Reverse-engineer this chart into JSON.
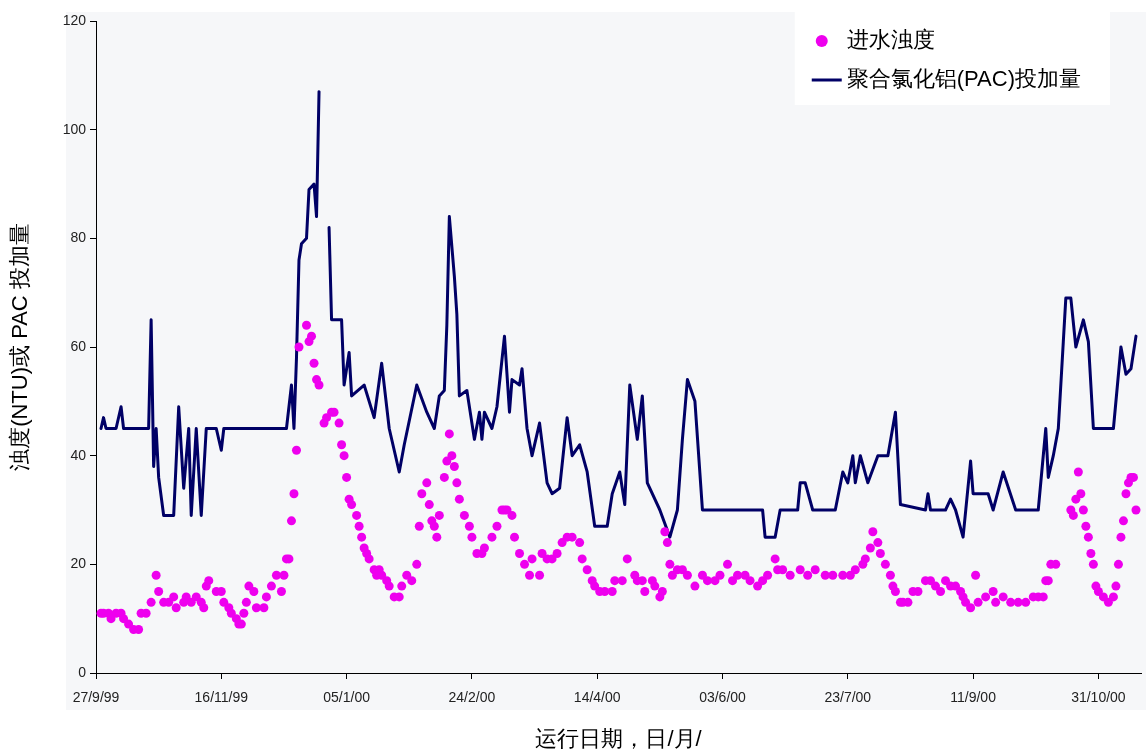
{
  "chart_data": {
    "type": "line",
    "xlabel": "运行日期，日/月/",
    "ylabel": "浊度(NTU)或 PAC 投加量",
    "xlim": [
      "1999-09-27",
      "2000-11-17"
    ],
    "xticks": [
      {
        "value": "1999-09-27",
        "label": "27/9/99"
      },
      {
        "value": "1999-11-16",
        "label": "16/11/99"
      },
      {
        "value": "2000-01-05",
        "label": "05/1/00"
      },
      {
        "value": "2000-02-24",
        "label": "24/2/00"
      },
      {
        "value": "2000-04-14",
        "label": "14/4/00"
      },
      {
        "value": "2000-06-03",
        "label": "03/6/00"
      },
      {
        "value": "2000-07-23",
        "label": "23/7/00"
      },
      {
        "value": "2000-09-11",
        "label": "11/9/00"
      },
      {
        "value": "2000-10-31",
        "label": "31/10/00"
      }
    ],
    "ylim": [
      0,
      120
    ],
    "yticks": [
      0,
      20,
      40,
      60,
      80,
      100,
      120
    ],
    "legend": "top right",
    "series": [
      {
        "name": "进水浊度",
        "type": "scatter",
        "marker": "circle",
        "color": "#ee00ee",
        "x": [
          "1999-09-29",
          "1999-09-30",
          "1999-10-02",
          "1999-10-03",
          "1999-10-05",
          "1999-10-07",
          "1999-10-08",
          "1999-10-10",
          "1999-10-12",
          "1999-10-14",
          "1999-10-15",
          "1999-10-17",
          "1999-10-19",
          "1999-10-21",
          "1999-10-22",
          "1999-10-24",
          "1999-10-26",
          "1999-10-28",
          "1999-10-29",
          "1999-11-01",
          "1999-11-02",
          "1999-11-04",
          "1999-11-06",
          "1999-11-08",
          "1999-11-09",
          "1999-11-10",
          "1999-11-11",
          "1999-11-14",
          "1999-11-16",
          "1999-11-17",
          "1999-11-19",
          "1999-11-20",
          "1999-11-22",
          "1999-11-23",
          "1999-11-24",
          "1999-11-25",
          "1999-11-26",
          "1999-11-27",
          "1999-11-29",
          "1999-11-30",
          "1999-12-03",
          "1999-12-04",
          "1999-12-06",
          "1999-12-08",
          "1999-12-10",
          "1999-12-11",
          "1999-12-12",
          "1999-12-13",
          "1999-12-14",
          "1999-12-15",
          "1999-12-16",
          "1999-12-17",
          "1999-12-20",
          "1999-12-21",
          "1999-12-22",
          "1999-12-23",
          "1999-12-24",
          "1999-12-25",
          "1999-12-27",
          "1999-12-28",
          "1999-12-30",
          "1999-12-31",
          "2000-01-02",
          "2000-01-03",
          "2000-01-04",
          "2000-01-05",
          "2000-01-06",
          "2000-01-07",
          "2000-01-09",
          "2000-01-10",
          "2000-01-11",
          "2000-01-12",
          "2000-01-13",
          "2000-01-14",
          "2000-01-16",
          "2000-01-17",
          "2000-01-18",
          "2000-01-19",
          "2000-01-21",
          "2000-01-22",
          "2000-01-24",
          "2000-01-26",
          "2000-01-27",
          "2000-01-29",
          "2000-01-31",
          "2000-02-02",
          "2000-02-03",
          "2000-02-04",
          "2000-02-06",
          "2000-02-07",
          "2000-02-08",
          "2000-02-09",
          "2000-02-10",
          "2000-02-11",
          "2000-02-13",
          "2000-02-14",
          "2000-02-15",
          "2000-02-16",
          "2000-02-17",
          "2000-02-18",
          "2000-02-19",
          "2000-02-21",
          "2000-02-23",
          "2000-02-24",
          "2000-02-26",
          "2000-02-28",
          "2000-02-29",
          "2000-03-03",
          "2000-03-05",
          "2000-03-07",
          "2000-03-08",
          "2000-03-09",
          "2000-03-11",
          "2000-03-12",
          "2000-03-14",
          "2000-03-16",
          "2000-03-18",
          "2000-03-19",
          "2000-03-22",
          "2000-03-23",
          "2000-03-25",
          "2000-03-27",
          "2000-03-29",
          "2000-03-31",
          "2000-04-02",
          "2000-04-04",
          "2000-04-07",
          "2000-04-08",
          "2000-04-10",
          "2000-04-12",
          "2000-04-13",
          "2000-04-15",
          "2000-04-17",
          "2000-04-20",
          "2000-04-21",
          "2000-04-24",
          "2000-04-26",
          "2000-04-29",
          "2000-04-30",
          "2000-05-02",
          "2000-05-03",
          "2000-05-06",
          "2000-05-07",
          "2000-05-09",
          "2000-05-10",
          "2000-05-11",
          "2000-05-12",
          "2000-05-13",
          "2000-05-14",
          "2000-05-16",
          "2000-05-18",
          "2000-05-20",
          "2000-05-23",
          "2000-05-26",
          "2000-05-28",
          "2000-05-31",
          "2000-06-02",
          "2000-06-05",
          "2000-06-07",
          "2000-06-09",
          "2000-06-12",
          "2000-06-14",
          "2000-06-17",
          "2000-06-19",
          "2000-06-21",
          "2000-06-24",
          "2000-06-25",
          "2000-06-27",
          "2000-06-30",
          "2000-07-04",
          "2000-07-07",
          "2000-07-10",
          "2000-07-14",
          "2000-07-17",
          "2000-07-21",
          "2000-07-24",
          "2000-07-26",
          "2000-07-29",
          "2000-07-30",
          "2000-08-01",
          "2000-08-02",
          "2000-08-04",
          "2000-08-05",
          "2000-08-07",
          "2000-08-09",
          "2000-08-10",
          "2000-08-11",
          "2000-08-13",
          "2000-08-14",
          "2000-08-16",
          "2000-08-18",
          "2000-08-20",
          "2000-08-23",
          "2000-08-25",
          "2000-08-27",
          "2000-08-29",
          "2000-08-31",
          "2000-09-02",
          "2000-09-04",
          "2000-09-06",
          "2000-09-07",
          "2000-09-08",
          "2000-09-10",
          "2000-09-12",
          "2000-09-13",
          "2000-09-16",
          "2000-09-19",
          "2000-09-20",
          "2000-09-23",
          "2000-09-26",
          "2000-09-29",
          "2000-10-02",
          "2000-10-05",
          "2000-10-07",
          "2000-10-09",
          "2000-10-10",
          "2000-10-11",
          "2000-10-12",
          "2000-10-14",
          "2000-10-20",
          "2000-10-21",
          "2000-10-22",
          "2000-10-23",
          "2000-10-24",
          "2000-10-25",
          "2000-10-26",
          "2000-10-27",
          "2000-10-28",
          "2000-10-29",
          "2000-10-30",
          "2000-10-31",
          "2000-11-02",
          "2000-11-04",
          "2000-11-06",
          "2000-11-07",
          "2000-11-08",
          "2000-11-09",
          "2000-11-10",
          "2000-11-11",
          "2000-11-12",
          "2000-11-13",
          "2000-11-14",
          "2000-11-15"
        ],
        "values": [
          11,
          11,
          11,
          10,
          11,
          11,
          10,
          9,
          8,
          8,
          11,
          11,
          13,
          18,
          15,
          13,
          13,
          14,
          12,
          13,
          14,
          13,
          14,
          13,
          12,
          16,
          17,
          15,
          15,
          13,
          12,
          11,
          10,
          9,
          9,
          11,
          13,
          16,
          15,
          12,
          12,
          14,
          16,
          18,
          15,
          18,
          21,
          21,
          28,
          33,
          41,
          60,
          64,
          61,
          62,
          57,
          54,
          53,
          46,
          47,
          48,
          48,
          46,
          42,
          40,
          36,
          32,
          31,
          29,
          27,
          25,
          23,
          22,
          21,
          19,
          18,
          19,
          18,
          17,
          16,
          14,
          14,
          16,
          18,
          17,
          20,
          27,
          33,
          35,
          31,
          28,
          27,
          25,
          29,
          36,
          39,
          44,
          40,
          38,
          35,
          32,
          29,
          27,
          25,
          22,
          22,
          23,
          25,
          27,
          30,
          30,
          30,
          29,
          25,
          22,
          20,
          18,
          21,
          18,
          22,
          21,
          21,
          22,
          24,
          25,
          25,
          24,
          21,
          19,
          17,
          16,
          15,
          15,
          15,
          17,
          17,
          21,
          18,
          17,
          17,
          15,
          17,
          16,
          14,
          15,
          26,
          24,
          20,
          18,
          19,
          19,
          18,
          16,
          18,
          17,
          17,
          18,
          20,
          17,
          18,
          18,
          17,
          16,
          17,
          18,
          21,
          19,
          19,
          18,
          19,
          18,
          19,
          18,
          18,
          18,
          18,
          19,
          20,
          21,
          23,
          26,
          24,
          22,
          20,
          18,
          16,
          15,
          13,
          13,
          13,
          15,
          15,
          17,
          17,
          16,
          15,
          17,
          16,
          16,
          15,
          14,
          13,
          12,
          18,
          13,
          14,
          15,
          13,
          14,
          13,
          13,
          13,
          14,
          14,
          14,
          17,
          17,
          20,
          20,
          30,
          29,
          32,
          37,
          33,
          30,
          27,
          25,
          22,
          20,
          16,
          15,
          14,
          13,
          14,
          16,
          20,
          25,
          28,
          33,
          35,
          36,
          36,
          30
        ]
      },
      {
        "name": "聚合氯化铝(PAC)投加量",
        "line_style": "solid",
        "color": "#000066",
        "x": [
          "1999-09-29",
          "1999-09-30",
          "1999-10-01",
          "1999-10-05",
          "1999-10-07",
          "1999-10-08",
          "1999-10-18",
          "1999-10-19",
          "1999-10-20",
          "1999-10-21",
          "1999-10-22",
          "1999-10-24",
          "1999-10-28",
          "1999-10-30",
          "1999-11-01",
          "1999-11-03",
          "1999-11-04",
          "1999-11-06",
          "1999-11-08",
          "1999-11-10",
          "1999-11-14",
          "1999-11-16",
          "1999-11-17",
          "1999-12-12",
          "1999-12-14",
          "1999-12-15",
          "1999-12-16",
          "1999-12-17",
          "1999-12-18",
          "1999-12-20",
          "1999-12-21",
          "1999-12-23",
          "1999-12-24",
          "1999-12-25",
          "1999-12-26",
          "1999-12-29",
          "1999-12-30",
          "2000-01-03",
          "2000-01-04",
          "2000-01-06",
          "2000-01-07",
          "2000-01-12",
          "2000-01-16",
          "2000-01-19",
          "2000-01-22",
          "2000-01-26",
          "2000-01-28",
          "2000-02-02",
          "2000-02-06",
          "2000-02-09",
          "2000-02-11",
          "2000-02-13",
          "2000-02-14",
          "2000-02-15",
          "2000-02-17",
          "2000-02-18",
          "2000-02-19",
          "2000-02-22",
          "2000-02-25",
          "2000-02-27",
          "2000-02-28",
          "2000-02-29",
          "2000-03-03",
          "2000-03-05",
          "2000-03-08",
          "2000-03-09",
          "2000-03-10",
          "2000-03-11",
          "2000-03-14",
          "2000-03-15",
          "2000-03-17",
          "2000-03-19",
          "2000-03-22",
          "2000-03-25",
          "2000-03-27",
          "2000-03-30",
          "2000-04-02",
          "2000-04-04",
          "2000-04-07",
          "2000-04-10",
          "2000-04-13",
          "2000-04-18",
          "2000-04-20",
          "2000-04-23",
          "2000-04-25",
          "2000-04-27",
          "2000-04-30",
          "2000-05-02",
          "2000-05-04",
          "2000-05-09",
          "2000-05-13",
          "2000-05-16",
          "2000-05-18",
          "2000-05-20",
          "2000-05-23",
          "2000-05-26",
          "2000-06-19",
          "2000-06-20",
          "2000-06-24",
          "2000-06-26",
          "2000-07-03",
          "2000-07-04",
          "2000-07-06",
          "2000-07-09",
          "2000-07-18",
          "2000-07-21",
          "2000-07-23",
          "2000-07-25",
          "2000-07-26",
          "2000-07-28",
          "2000-07-31",
          "2000-08-04",
          "2000-08-08",
          "2000-08-11",
          "2000-08-13",
          "2000-08-23",
          "2000-08-24",
          "2000-08-25",
          "2000-08-31",
          "2000-09-02",
          "2000-09-04",
          "2000-09-07",
          "2000-09-10",
          "2000-09-11",
          "2000-09-17",
          "2000-09-19",
          "2000-09-23",
          "2000-09-28",
          "2000-10-07",
          "2000-10-10",
          "2000-10-11",
          "2000-10-13",
          "2000-10-15",
          "2000-10-17",
          "2000-10-18",
          "2000-10-20",
          "2000-10-22",
          "2000-10-25",
          "2000-10-27",
          "2000-10-29",
          "2000-11-06",
          "2000-11-09",
          "2000-11-11",
          "2000-11-13",
          "2000-11-15"
        ],
        "values": [
          45,
          47,
          45,
          45,
          49,
          45,
          45,
          65,
          38,
          45,
          36,
          29,
          29,
          49,
          34,
          45,
          29,
          45,
          29,
          45,
          45,
          41,
          45,
          45,
          53,
          45,
          58,
          76,
          79,
          80,
          89,
          90,
          84,
          107,
          null,
          82,
          65,
          65,
          53,
          59,
          51,
          53,
          47,
          57,
          45,
          37,
          42,
          53,
          48,
          45,
          51,
          52,
          64,
          84,
          73,
          66,
          51,
          52,
          43,
          48,
          43,
          48,
          45,
          49,
          62,
          55,
          48,
          54,
          53,
          56,
          45,
          40,
          46,
          35,
          33,
          34,
          47,
          40,
          42,
          37,
          27,
          27,
          33,
          37,
          31,
          53,
          43,
          51,
          35,
          30,
          25,
          30,
          43,
          54,
          50,
          30,
          30,
          25,
          25,
          30,
          30,
          35,
          35,
          30,
          30,
          37,
          35,
          40,
          35,
          40,
          35,
          40,
          40,
          48,
          31,
          30,
          33,
          30,
          30,
          32,
          30,
          25,
          39,
          33,
          33,
          30,
          37,
          30,
          30,
          45,
          36,
          40,
          45,
          61,
          69,
          69,
          60,
          65,
          61,
          45,
          45,
          60,
          55,
          56,
          62
        ]
      }
    ]
  }
}
